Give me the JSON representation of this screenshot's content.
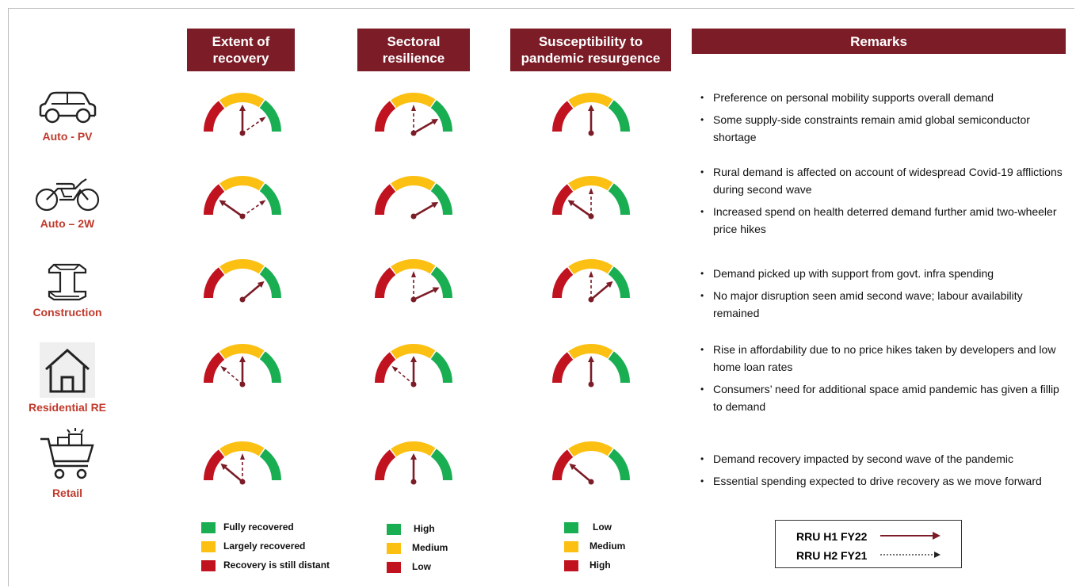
{
  "headers": [
    "Extent of\nrecovery",
    "Sectoral\nresilience",
    "Susceptibility to\npandemic resurgence",
    "Remarks"
  ],
  "sectors": [
    {
      "label": "Auto - PV",
      "icon": "car-icon"
    },
    {
      "label": "Auto – 2W",
      "icon": "motorcycle-icon"
    },
    {
      "label": "Construction",
      "icon": "i-beam-icon"
    },
    {
      "label": "Residential RE",
      "icon": "house-icon"
    },
    {
      "label": "Retail",
      "icon": "shopping-cart-icon"
    }
  ],
  "gauges": [
    [
      {
        "h1": 90,
        "h2": 35
      },
      {
        "h1": 30,
        "h2": 90
      },
      {
        "h1": 90,
        "h2": null
      }
    ],
    [
      {
        "h1": 145,
        "h2": 35
      },
      {
        "h1": 30,
        "h2": null
      },
      {
        "h1": 145,
        "h2": 90
      }
    ],
    [
      {
        "h1": 40,
        "h2": null
      },
      {
        "h1": 25,
        "h2": 90
      },
      {
        "h1": 40,
        "h2": 90
      }
    ],
    [
      {
        "h1": 90,
        "h2": 140
      },
      {
        "h1": 90,
        "h2": 140
      },
      {
        "h1": 90,
        "h2": null
      }
    ],
    [
      {
        "h1": 140,
        "h2": 90
      },
      {
        "h1": 90,
        "h2": null
      },
      {
        "h1": 140,
        "h2": null
      }
    ]
  ],
  "remarks": [
    [
      "Preference on personal mobility supports overall demand",
      "Some supply-side constraints remain amid global semiconductor shortage"
    ],
    [
      "Rural demand is affected on account of widespread Covid-19 afflictions during second wave",
      "Increased spend on health deterred demand further amid two-wheeler price hikes"
    ],
    [
      "Demand picked up with support from govt. infra spending",
      "No major disruption seen amid second wave; labour availability remained"
    ],
    [
      "Rise in affordability due to no price hikes taken by developers and low home loan rates",
      "Consumers’ need for additional space amid pandemic has given a fillip to demand"
    ],
    [
      "Demand recovery impacted by second wave of the pandemic",
      "Essential spending expected to drive recovery as we move forward"
    ]
  ],
  "legends": [
    [
      "Fully recovered",
      "Largely recovered",
      "Recovery is still distant"
    ],
    [
      "High",
      "Medium",
      "Low"
    ],
    [
      "Low",
      "Medium",
      "High"
    ]
  ],
  "key": {
    "h1": "RRU H1 FY22",
    "h2": "RRU H2 FY21"
  },
  "colors": {
    "header": "#7b1c27",
    "green": "#1aae53",
    "amber": "#fcc012",
    "red": "#c1121f",
    "needle": "#7b1c27",
    "sector_label": "#c0392b"
  }
}
